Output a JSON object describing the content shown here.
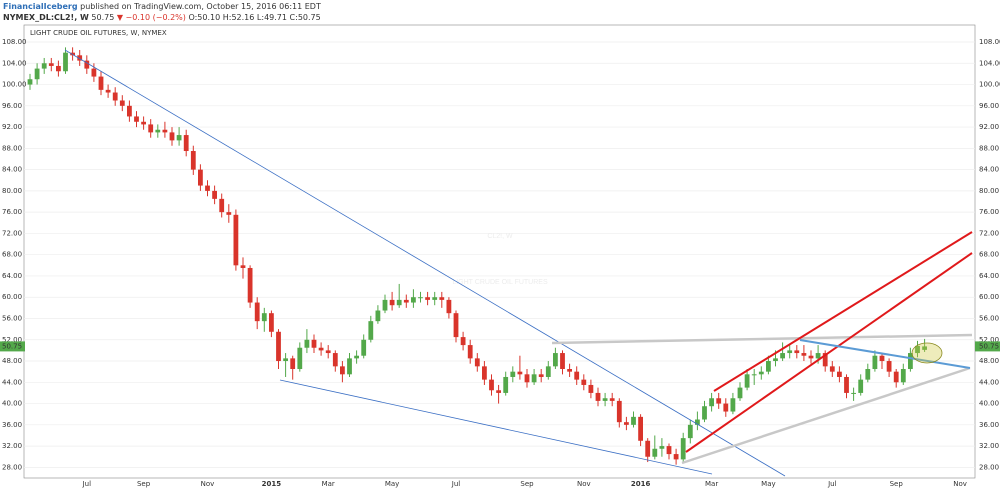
{
  "header": {
    "author": "FinancialIceberg",
    "published": "published on TradingView.com, October 15, 2016 06:11 EDT",
    "symbol": "NYMEX_DL:CL2!, W",
    "last": "50.75",
    "change": "▼ −0.10 (−0.2%)",
    "open": "O:50.10",
    "high": "H:52.16",
    "low": "L:49.71",
    "close": "C:50.75"
  },
  "chart_data": {
    "type": "candlestick",
    "title": "LIGHT CRUDE OIL FUTURES, W, NYMEX",
    "watermark": "CL2!, W",
    "watermark_subtitle": "LIGHT CRUDE OIL FUTURES",
    "up_color": "#53a84a",
    "down_color": "#d9342b",
    "grid": true,
    "last_price": 50.75,
    "ylim": [
      26,
      111.2
    ],
    "yticks": [
      {
        "value": 28,
        "label": "28.00"
      },
      {
        "value": 32,
        "label": "32.00"
      },
      {
        "value": 36,
        "label": "36.00"
      },
      {
        "value": 40,
        "label": "40.00"
      },
      {
        "value": 44,
        "label": "44.00"
      },
      {
        "value": 48,
        "label": "48.00"
      },
      {
        "value": 52,
        "label": "52.00"
      },
      {
        "value": 56,
        "label": "56.00"
      },
      {
        "value": 60,
        "label": "60.00"
      },
      {
        "value": 64,
        "label": "64.00"
      },
      {
        "value": 68,
        "label": "68.00"
      },
      {
        "value": 72,
        "label": "72.00"
      },
      {
        "value": 76,
        "label": "76.00"
      },
      {
        "value": 80,
        "label": "80.00"
      },
      {
        "value": 84,
        "label": "84.00"
      },
      {
        "value": 88,
        "label": "88.00"
      },
      {
        "value": 92,
        "label": "92.00"
      },
      {
        "value": 96,
        "label": "96.00"
      },
      {
        "value": 100,
        "label": "100.00"
      },
      {
        "value": 104,
        "label": "104.00"
      },
      {
        "value": 108,
        "label": "108.00"
      }
    ],
    "categories": [
      null,
      null,
      null,
      null,
      null,
      null,
      null,
      null,
      "Jul",
      null,
      null,
      null,
      null,
      null,
      null,
      null,
      "Sep",
      null,
      null,
      null,
      null,
      null,
      null,
      null,
      null,
      "Nov",
      null,
      null,
      null,
      null,
      null,
      null,
      null,
      null,
      "2015",
      null,
      null,
      null,
      null,
      null,
      null,
      null,
      "Mar",
      null,
      null,
      null,
      null,
      null,
      null,
      null,
      null,
      "May",
      null,
      null,
      null,
      null,
      null,
      null,
      null,
      null,
      "Jul",
      null,
      null,
      null,
      null,
      null,
      null,
      null,
      null,
      null,
      "Sep",
      null,
      null,
      null,
      null,
      null,
      null,
      null,
      "Nov",
      null,
      null,
      null,
      null,
      null,
      null,
      null,
      "2016",
      null,
      null,
      null,
      null,
      null,
      null,
      null,
      null,
      null,
      "Mar",
      null,
      null,
      null,
      null,
      null,
      null,
      null,
      "May",
      null,
      null,
      null,
      null,
      null,
      null,
      null,
      null,
      "Jul",
      null,
      null,
      null,
      null,
      null,
      null,
      null,
      null,
      "Sep",
      null,
      null,
      null,
      null,
      null,
      null,
      null,
      null,
      "Nov",
      null
    ],
    "open": [
      100,
      101,
      103,
      104,
      103.5,
      102.5,
      106,
      105.5,
      104.5,
      103,
      101.5,
      99,
      98.5,
      97,
      96,
      94,
      93,
      92.5,
      91,
      91.5,
      91,
      89.5,
      90.5,
      87.5,
      84,
      81,
      80,
      78.5,
      76,
      75.5,
      66,
      65.5,
      59,
      55.5,
      57,
      53.5,
      48,
      48.5,
      46.5,
      50.5,
      52,
      50.5,
      50,
      49.5,
      47,
      45.5,
      48.5,
      49,
      52,
      55.5,
      57.5,
      59.5,
      58.5,
      59.5,
      59,
      60,
      60,
      59.5,
      60,
      59.5,
      57,
      52.5,
      51,
      48.5,
      47,
      44.5,
      42.5,
      42,
      45,
      46,
      45.5,
      44,
      45.5,
      45,
      47,
      49.5,
      46.5,
      46,
      44.5,
      43.5,
      42,
      40.5,
      41,
      40.5,
      36.5,
      36,
      37.5,
      33,
      30,
      31.5,
      32,
      30.5,
      29.5,
      33.5,
      36,
      37,
      39.5,
      41,
      40,
      38.5,
      41,
      43,
      45.5,
      45.5,
      46,
      48,
      48.5,
      49.5,
      50,
      49.5,
      49,
      48.5,
      49.5,
      47,
      46,
      45,
      42,
      42,
      44.5,
      46.5,
      49,
      48,
      46,
      44,
      46.5,
      49.5,
      50.1,
      null,
      null,
      null,
      null,
      null,
      null
    ],
    "high": [
      102,
      104,
      105,
      105,
      104.5,
      107,
      107,
      106.5,
      105.5,
      104,
      102.5,
      100,
      99.5,
      98,
      97,
      95,
      94,
      93.5,
      92.5,
      93,
      92,
      92,
      91.5,
      88.5,
      85,
      82,
      81,
      79.5,
      77.5,
      76.5,
      67.5,
      66,
      60,
      58,
      57.5,
      54,
      49.5,
      49,
      51.5,
      54,
      53,
      51.5,
      51,
      50,
      48,
      49.5,
      50,
      53,
      56.5,
      58.5,
      60.5,
      61,
      62.5,
      60.5,
      61.5,
      61,
      61,
      61,
      61,
      60,
      57.5,
      53.5,
      52,
      49.5,
      48,
      45.5,
      43.5,
      46,
      47,
      49,
      46.5,
      46.5,
      46.5,
      48,
      50.5,
      50,
      47.5,
      47,
      45.5,
      44.5,
      43,
      42,
      42,
      41,
      37.5,
      38.5,
      38,
      33.5,
      34,
      33.5,
      32.5,
      31.5,
      34.5,
      37,
      38.5,
      40.5,
      42,
      42,
      41,
      42,
      44,
      46.5,
      46.5,
      47,
      49,
      50,
      51.5,
      51,
      51,
      51,
      50,
      51,
      50,
      48,
      47,
      45.5,
      43,
      45.5,
      47.5,
      50,
      49.5,
      48.5,
      46.5,
      47.5,
      50.5,
      51.8,
      52.16,
      null,
      null,
      null,
      null,
      null,
      null
    ],
    "low": [
      99,
      100,
      102,
      102.5,
      101.5,
      102,
      104.5,
      103.5,
      102,
      100.5,
      98,
      97.5,
      96,
      95,
      93,
      92,
      91.5,
      90,
      90,
      90,
      88.5,
      88.5,
      86.5,
      83,
      80,
      79,
      77.5,
      75,
      74,
      65,
      63.5,
      58,
      54,
      53.5,
      52.5,
      46.5,
      45,
      44.5,
      46,
      49.5,
      49.5,
      49,
      48.5,
      46,
      44,
      45,
      47.5,
      48.5,
      51.5,
      55,
      57,
      57.5,
      58,
      58,
      58,
      59,
      58.5,
      58.5,
      58,
      56,
      51.5,
      50,
      47.5,
      46,
      43.5,
      41.5,
      40,
      41.5,
      44,
      44.5,
      43,
      43.5,
      44,
      44.5,
      46.5,
      45.5,
      45,
      43.5,
      42.5,
      41,
      39.5,
      39.5,
      39.5,
      35.5,
      35,
      35.5,
      32,
      29,
      29.5,
      30,
      29.5,
      28.5,
      29,
      32.5,
      35,
      36.5,
      38.5,
      39,
      37.5,
      38,
      40.5,
      42.5,
      43.5,
      44.5,
      45.5,
      47,
      48,
      48.5,
      48.5,
      48,
      47.5,
      47.5,
      46,
      45,
      44,
      41,
      40.5,
      41.5,
      44,
      46,
      46.5,
      45,
      43,
      43.5,
      46,
      48.7,
      49.71,
      null,
      null,
      null,
      null,
      null,
      null
    ],
    "close": [
      101,
      103,
      104,
      103.5,
      102.5,
      106,
      105.5,
      104.5,
      103,
      101.5,
      99,
      98.5,
      97,
      96,
      94,
      93,
      92.5,
      91,
      91.5,
      91,
      89.5,
      90.5,
      87.5,
      84,
      81,
      80,
      78.5,
      76,
      75.5,
      66,
      65.5,
      59,
      55.5,
      57,
      53.5,
      48,
      48.5,
      46.5,
      50.5,
      52,
      50.5,
      50,
      49.5,
      47,
      45.5,
      48.5,
      49,
      52,
      55.5,
      57.5,
      59.5,
      58.5,
      59.5,
      59,
      60,
      60,
      59.5,
      60,
      59.5,
      57,
      52.5,
      51,
      48.5,
      47,
      44.5,
      42.5,
      42,
      45,
      46,
      45.5,
      44,
      45.5,
      45,
      47,
      49.5,
      46.5,
      46,
      44.5,
      43.5,
      42,
      40.5,
      41,
      40.5,
      36.5,
      36,
      37.5,
      33,
      30,
      31.5,
      32,
      30.5,
      29.5,
      33.5,
      36,
      37,
      39.5,
      41,
      40,
      38.5,
      41,
      43,
      45.5,
      45.5,
      46,
      48,
      48.5,
      49.5,
      50,
      49.5,
      49,
      48.5,
      49.5,
      47,
      46,
      45,
      42,
      42,
      44.5,
      46.5,
      49,
      48,
      46,
      44,
      46.5,
      49.5,
      50.85,
      50.75,
      null,
      null,
      null,
      null,
      null,
      null
    ]
  }
}
